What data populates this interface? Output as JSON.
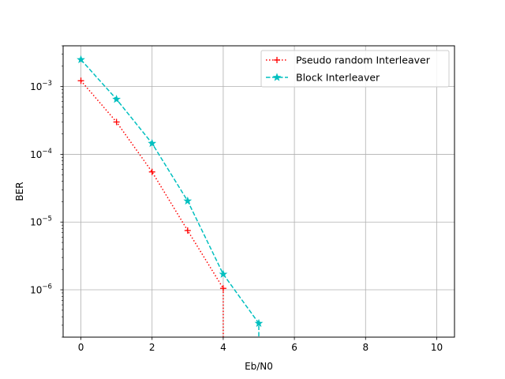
{
  "chart_data": {
    "type": "line",
    "title": "",
    "xlabel": "Eb/N0",
    "ylabel": "BER",
    "xlim": [
      -0.5,
      10.5
    ],
    "ylim": [
      2e-07,
      0.004
    ],
    "yscale": "log",
    "grid": true,
    "legend_position": "top-right",
    "xticks": [
      {
        "value": 0,
        "label": "0"
      },
      {
        "value": 2,
        "label": "2"
      },
      {
        "value": 4,
        "label": "4"
      },
      {
        "value": 6,
        "label": "6"
      },
      {
        "value": 8,
        "label": "8"
      },
      {
        "value": 10,
        "label": "10"
      }
    ],
    "yticks": [
      {
        "exp": -3,
        "base": "10",
        "power": "−3"
      },
      {
        "exp": -4,
        "base": "10",
        "power": "−4"
      },
      {
        "exp": -5,
        "base": "10",
        "power": "−5"
      },
      {
        "exp": -6,
        "base": "10",
        "power": "−6"
      }
    ],
    "series": [
      {
        "name": "Pseudo random Interleaver",
        "color": "#ff0000",
        "linestyle": "dotted",
        "marker": "plus",
        "x": [
          0,
          1,
          2,
          3,
          4,
          4
        ],
        "y": [
          0.00122,
          0.0003,
          5.5e-05,
          7.5e-06,
          1.05e-06,
          0
        ]
      },
      {
        "name": "Block Interleaver",
        "color": "#00bfbf",
        "linestyle": "dashed",
        "marker": "star",
        "x": [
          0,
          1,
          2,
          3,
          4,
          5,
          5
        ],
        "y": [
          0.0025,
          0.00065,
          0.000145,
          2.05e-05,
          1.7e-06,
          3.2e-07,
          0
        ]
      }
    ]
  }
}
